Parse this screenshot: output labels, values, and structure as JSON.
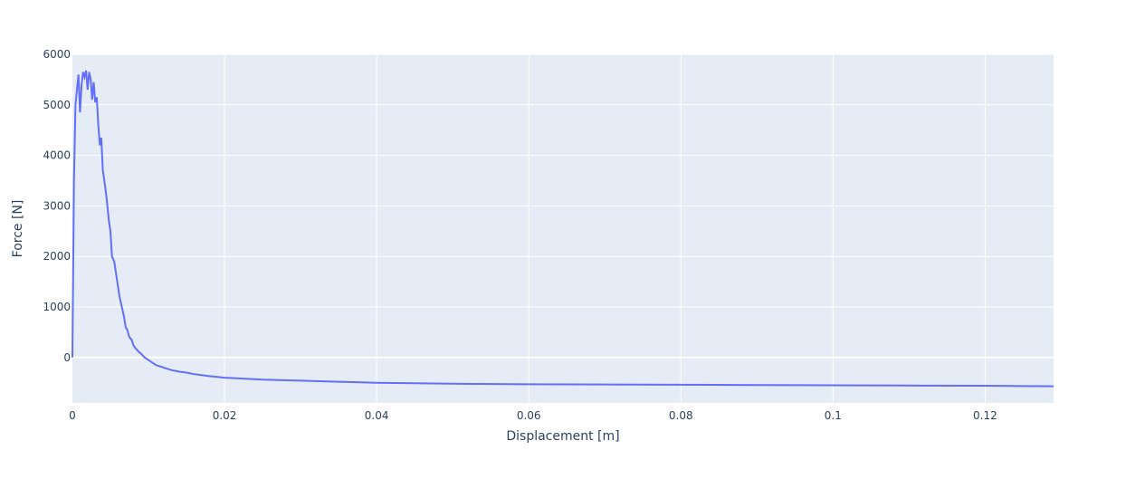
{
  "chart_data": {
    "type": "line",
    "title": "",
    "xlabel": "Displacement [m]",
    "ylabel": "Force [N]",
    "xlim": [
      0,
      0.129
    ],
    "ylim": [
      -900,
      6000
    ],
    "x_ticks": [
      0,
      0.02,
      0.04,
      0.06,
      0.08,
      0.1,
      0.12
    ],
    "x_tick_labels": [
      "0",
      "0.02",
      "0.04",
      "0.06",
      "0.08",
      "0.1",
      "0.12"
    ],
    "y_ticks": [
      0,
      1000,
      2000,
      3000,
      4000,
      5000,
      6000
    ],
    "y_tick_labels": [
      "0",
      "1000",
      "2000",
      "3000",
      "4000",
      "5000",
      "6000"
    ],
    "grid": true,
    "legend": "none",
    "colors": {
      "plot_bg": "#e5ecf6",
      "grid": "#ffffff",
      "series": "#636efa",
      "text": "#2a3f5f"
    },
    "series": [
      {
        "x": [
          0,
          0.0002,
          0.0004,
          0.0006,
          0.0008,
          0.001,
          0.0012,
          0.0014,
          0.0016,
          0.0018,
          0.002,
          0.0022,
          0.0024,
          0.0026,
          0.0028,
          0.003,
          0.0032,
          0.0034,
          0.0036,
          0.0038,
          0.004,
          0.0042,
          0.0045,
          0.0048,
          0.005,
          0.0052,
          0.0055,
          0.0058,
          0.006,
          0.0062,
          0.0065,
          0.0068,
          0.007,
          0.0072,
          0.0075,
          0.0078,
          0.008,
          0.0082,
          0.0085,
          0.0088,
          0.009,
          0.0095,
          0.01,
          0.0105,
          0.011,
          0.012,
          0.013,
          0.014,
          0.015,
          0.016,
          0.018,
          0.02,
          0.025,
          0.03,
          0.035,
          0.04,
          0.045,
          0.05,
          0.06,
          0.07,
          0.08,
          0.09,
          0.1,
          0.11,
          0.12,
          0.129
        ],
        "y": [
          0,
          3500,
          5000,
          5300,
          5600,
          4850,
          5400,
          5650,
          5550,
          5680,
          5300,
          5650,
          5500,
          5100,
          5450,
          5050,
          5150,
          4600,
          4200,
          4350,
          3700,
          3500,
          3150,
          2700,
          2500,
          2000,
          1900,
          1600,
          1400,
          1200,
          1000,
          800,
          600,
          550,
          400,
          350,
          250,
          200,
          150,
          100,
          80,
          0,
          -50,
          -100,
          -150,
          -200,
          -250,
          -280,
          -300,
          -330,
          -370,
          -400,
          -440,
          -460,
          -480,
          -500,
          -510,
          -520,
          -530,
          -535,
          -540,
          -545,
          -550,
          -555,
          -560,
          -570
        ]
      }
    ]
  }
}
